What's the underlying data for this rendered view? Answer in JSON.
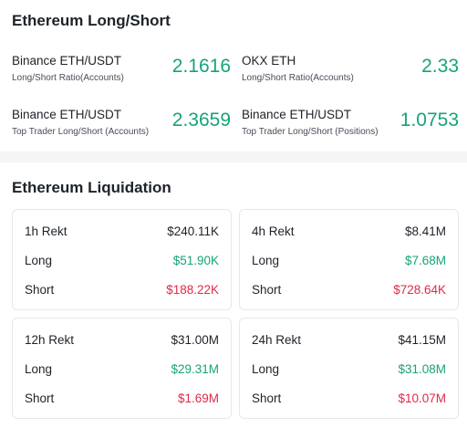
{
  "long_short": {
    "title": "Ethereum Long/Short",
    "ratios": [
      {
        "name": "Binance ETH/USDT",
        "sub": "Long/Short Ratio(Accounts)",
        "value": "2.1616"
      },
      {
        "name": "OKX ETH",
        "sub": "Long/Short Ratio(Accounts)",
        "value": "2.33"
      },
      {
        "name": "Binance ETH/USDT",
        "sub": "Top Trader Long/Short (Accounts)",
        "value": "2.3659"
      },
      {
        "name": "Binance ETH/USDT",
        "sub": "Top Trader Long/Short (Positions)",
        "value": "1.0753"
      }
    ]
  },
  "liquidation": {
    "title": "Ethereum Liquidation",
    "cards": [
      {
        "period": "1h Rekt",
        "total": "$240.11K",
        "long_label": "Long",
        "long": "$51.90K",
        "short_label": "Short",
        "short": "$188.22K"
      },
      {
        "period": "4h Rekt",
        "total": "$8.41M",
        "long_label": "Long",
        "long": "$7.68M",
        "short_label": "Short",
        "short": "$728.64K"
      },
      {
        "period": "12h Rekt",
        "total": "$31.00M",
        "long_label": "Long",
        "long": "$29.31M",
        "short_label": "Short",
        "short": "$1.69M"
      },
      {
        "period": "24h Rekt",
        "total": "$41.15M",
        "long_label": "Long",
        "long": "$31.08M",
        "short_label": "Short",
        "short": "$10.07M"
      }
    ]
  },
  "colors": {
    "positive": "#16a37a",
    "negative": "#e0294a",
    "text": "#1e2329"
  }
}
